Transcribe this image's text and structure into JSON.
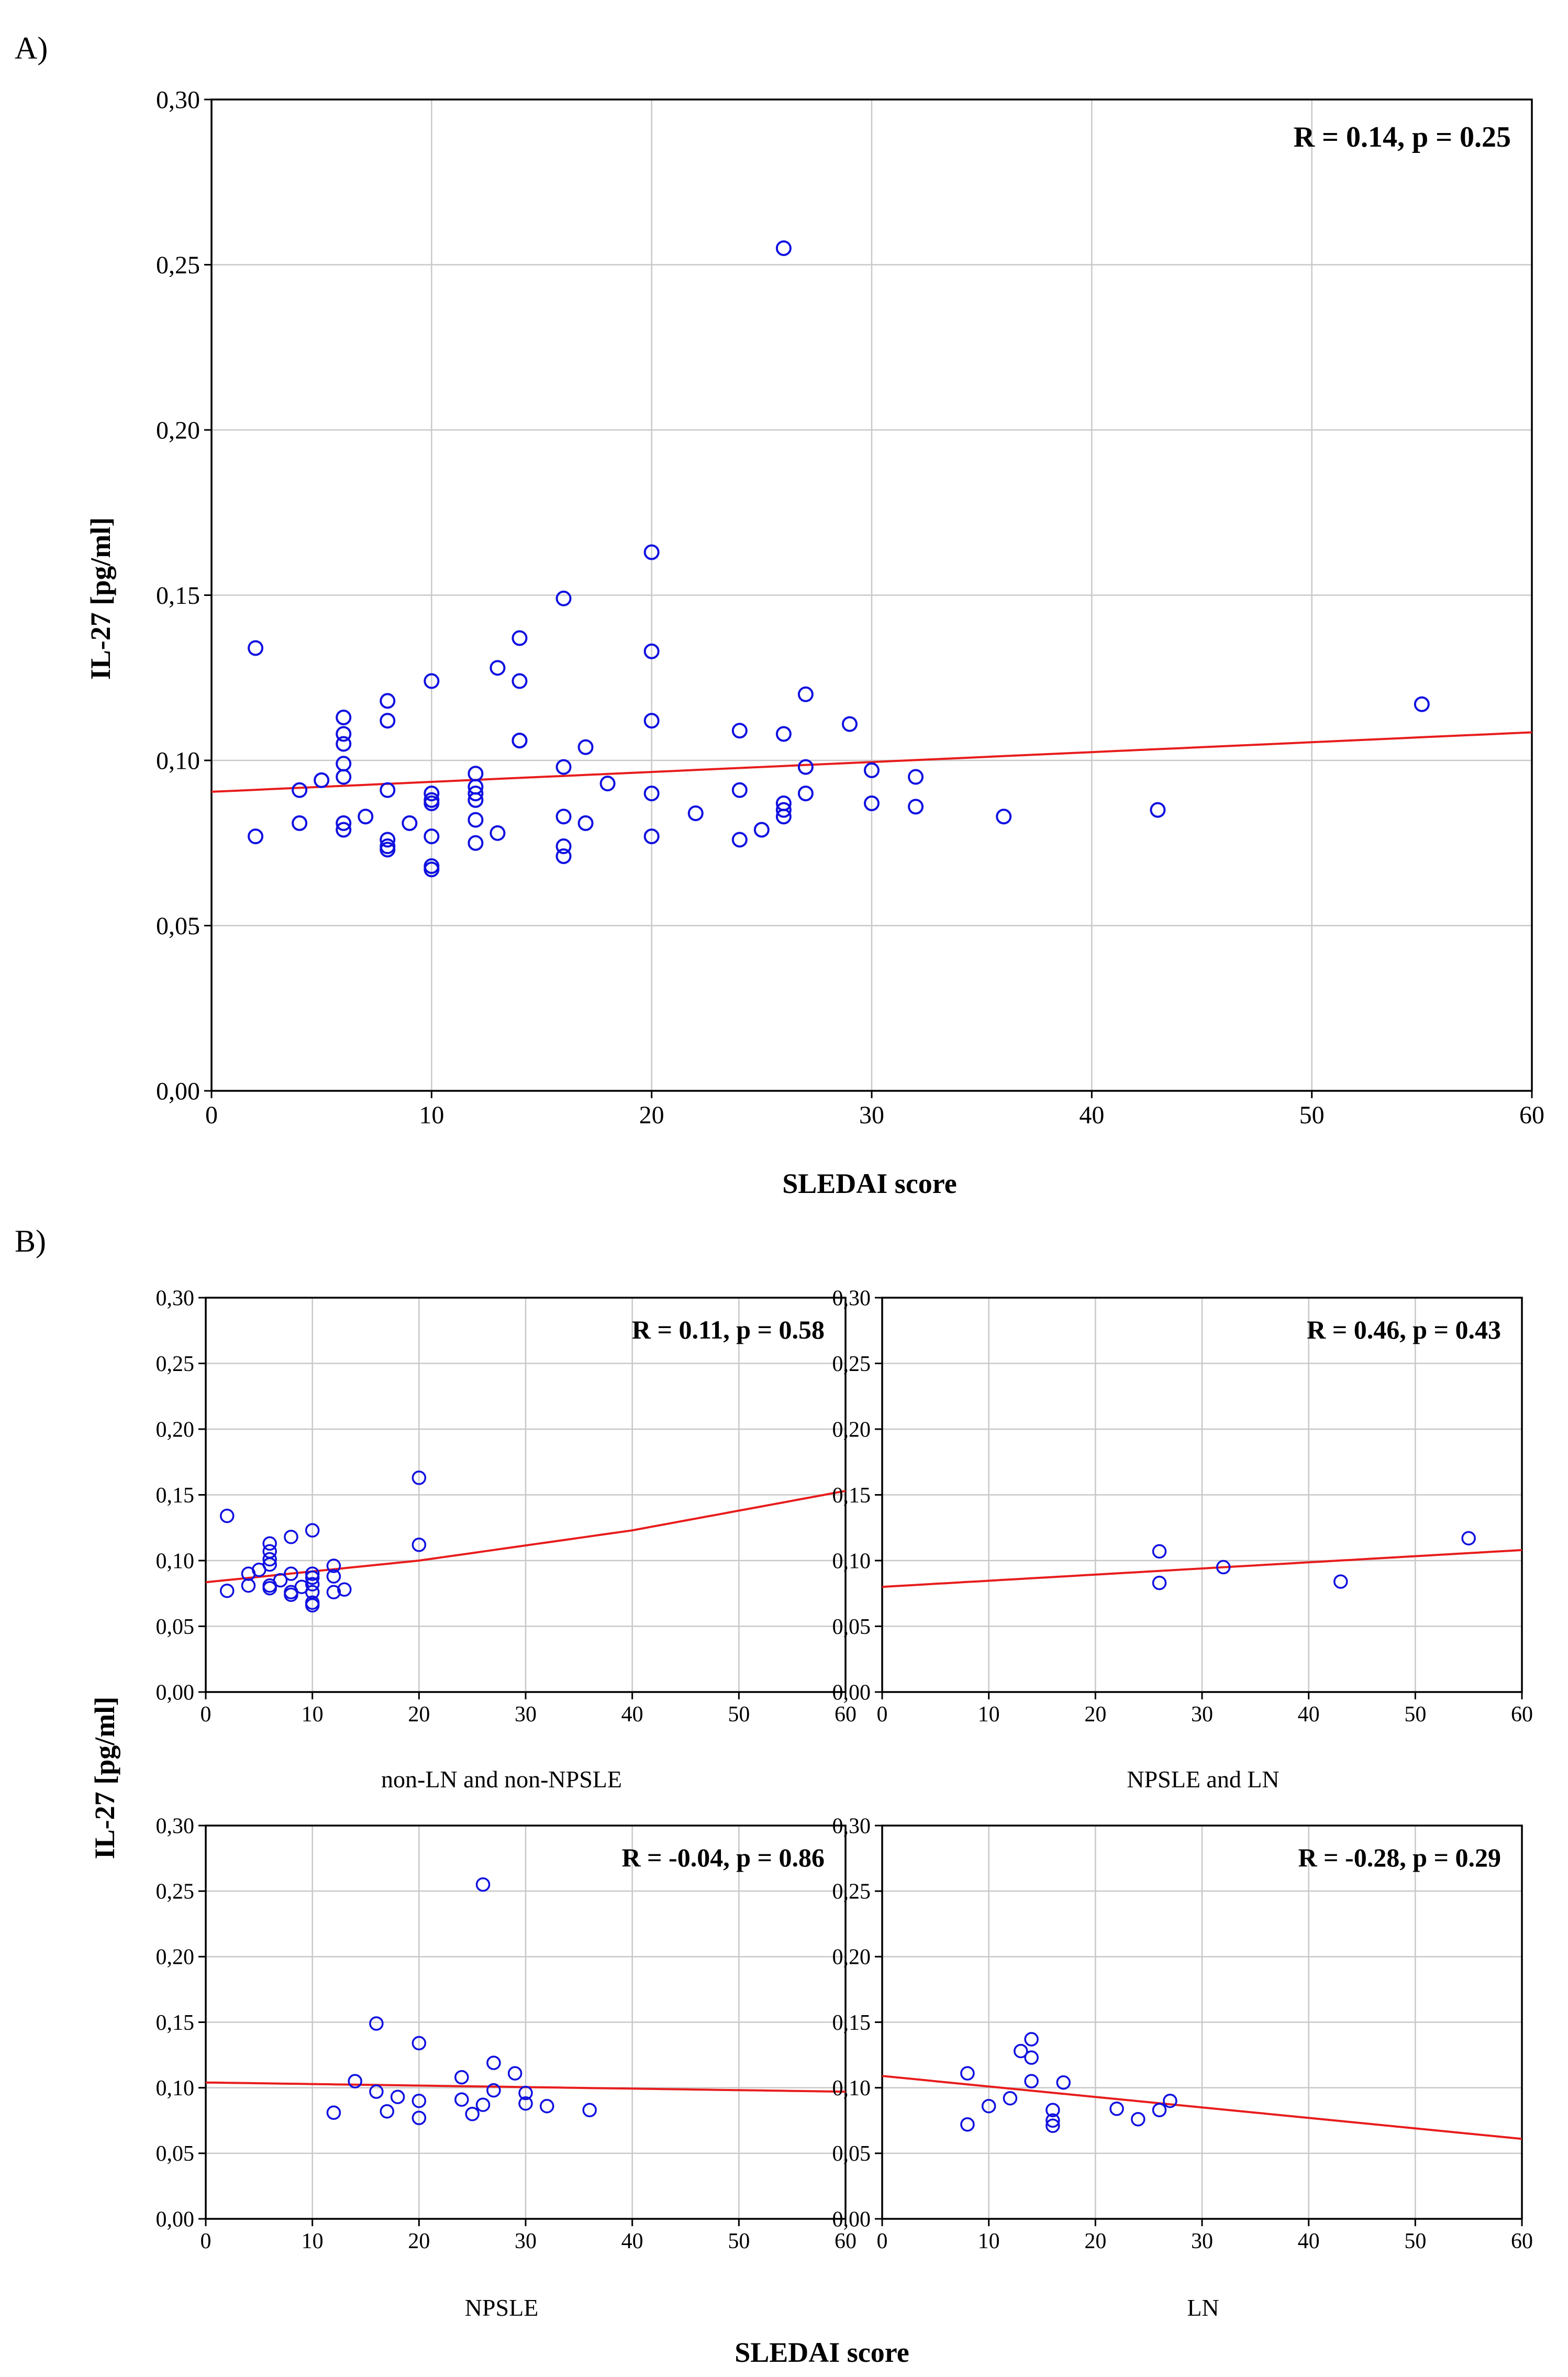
{
  "figure": {
    "panel_a_label": "A)",
    "panel_b_label": "B)",
    "shared_xlabel": "SLEDAI score",
    "shared_ylabel": "IL-27 [pg/ml]"
  },
  "colors": {
    "points": "#1010e0",
    "fit": "#e81c1c",
    "grid": "#c8c8c8",
    "frame": "#000000"
  },
  "chart_data": [
    {
      "type": "scatter",
      "panel": "A",
      "xlabel": "SLEDAI score",
      "ylabel": "IL-27 [pg/ml]",
      "annotation": "R = 0.14, p = 0.25",
      "xlim": [
        0,
        60
      ],
      "ylim": [
        0,
        0.3
      ],
      "x_ticks": [
        "0",
        "10",
        "20",
        "30",
        "40",
        "50",
        "60"
      ],
      "y_ticks": [
        "0,00",
        "0,05",
        "0,10",
        "0,15",
        "0,20",
        "0,25",
        "0,30"
      ],
      "grid": true,
      "fit_line": {
        "x": [
          0,
          60
        ],
        "y": [
          0.0905,
          0.1085
        ]
      },
      "points": [
        [
          2,
          0.134
        ],
        [
          2,
          0.077
        ],
        [
          4,
          0.091
        ],
        [
          4,
          0.081
        ],
        [
          5,
          0.094
        ],
        [
          6,
          0.113
        ],
        [
          6,
          0.108
        ],
        [
          6,
          0.105
        ],
        [
          6,
          0.099
        ],
        [
          6,
          0.095
        ],
        [
          6,
          0.081
        ],
        [
          6,
          0.079
        ],
        [
          7,
          0.083
        ],
        [
          8,
          0.118
        ],
        [
          8,
          0.112
        ],
        [
          8,
          0.091
        ],
        [
          8,
          0.076
        ],
        [
          8,
          0.074
        ],
        [
          8,
          0.073
        ],
        [
          9,
          0.081
        ],
        [
          10,
          0.124
        ],
        [
          10,
          0.09
        ],
        [
          10,
          0.088
        ],
        [
          10,
          0.087
        ],
        [
          10,
          0.077
        ],
        [
          10,
          0.068
        ],
        [
          10,
          0.067
        ],
        [
          12,
          0.096
        ],
        [
          12,
          0.092
        ],
        [
          12,
          0.09
        ],
        [
          12,
          0.088
        ],
        [
          12,
          0.082
        ],
        [
          12,
          0.075
        ],
        [
          13,
          0.128
        ],
        [
          13,
          0.078
        ],
        [
          14,
          0.137
        ],
        [
          14,
          0.124
        ],
        [
          14,
          0.106
        ],
        [
          14,
          0.106
        ],
        [
          16,
          0.149
        ],
        [
          16,
          0.098
        ],
        [
          16,
          0.083
        ],
        [
          16,
          0.074
        ],
        [
          16,
          0.071
        ],
        [
          17,
          0.104
        ],
        [
          17,
          0.081
        ],
        [
          18,
          0.093
        ],
        [
          20,
          0.163
        ],
        [
          20,
          0.133
        ],
        [
          20,
          0.112
        ],
        [
          20,
          0.09
        ],
        [
          20,
          0.077
        ],
        [
          22,
          0.084
        ],
        [
          24,
          0.109
        ],
        [
          24,
          0.091
        ],
        [
          24,
          0.076
        ],
        [
          25,
          0.079
        ],
        [
          26,
          0.255
        ],
        [
          26,
          0.108
        ],
        [
          26,
          0.087
        ],
        [
          26,
          0.085
        ],
        [
          26,
          0.083
        ],
        [
          27,
          0.12
        ],
        [
          27,
          0.098
        ],
        [
          27,
          0.09
        ],
        [
          29,
          0.111
        ],
        [
          30,
          0.097
        ],
        [
          30,
          0.087
        ],
        [
          32,
          0.095
        ],
        [
          32,
          0.086
        ],
        [
          36,
          0.083
        ],
        [
          43,
          0.085
        ],
        [
          55,
          0.117
        ]
      ]
    },
    {
      "type": "scatter",
      "panel": "B1",
      "subtitle": "non-LN and non-NPSLE",
      "annotation": "R = 0.11, p = 0.58",
      "xlim": [
        0,
        60
      ],
      "ylim": [
        0,
        0.3
      ],
      "x_ticks": [
        "0",
        "10",
        "20",
        "30",
        "40",
        "50",
        "60"
      ],
      "y_ticks": [
        "0,00",
        "0,05",
        "0,10",
        "0,15",
        "0,20",
        "0,25",
        "0,30"
      ],
      "grid": true,
      "fit_line": {
        "x": [
          0,
          20,
          40,
          60
        ],
        "y": [
          0.0835,
          0.1,
          0.123,
          0.153
        ]
      },
      "points": [
        [
          2,
          0.134
        ],
        [
          2,
          0.077
        ],
        [
          4,
          0.09
        ],
        [
          4,
          0.081
        ],
        [
          5,
          0.093
        ],
        [
          6,
          0.113
        ],
        [
          6,
          0.107
        ],
        [
          6,
          0.101
        ],
        [
          6,
          0.097
        ],
        [
          6,
          0.081
        ],
        [
          6,
          0.079
        ],
        [
          7,
          0.085
        ],
        [
          8,
          0.118
        ],
        [
          8,
          0.09
        ],
        [
          8,
          0.076
        ],
        [
          8,
          0.074
        ],
        [
          9,
          0.08
        ],
        [
          10,
          0.123
        ],
        [
          10,
          0.09
        ],
        [
          10,
          0.087
        ],
        [
          10,
          0.082
        ],
        [
          10,
          0.076
        ],
        [
          10,
          0.068
        ],
        [
          10,
          0.066
        ],
        [
          12,
          0.096
        ],
        [
          12,
          0.088
        ],
        [
          12,
          0.076
        ],
        [
          13,
          0.078
        ],
        [
          20,
          0.163
        ],
        [
          20,
          0.112
        ]
      ]
    },
    {
      "type": "scatter",
      "panel": "B2",
      "subtitle": "NPSLE and LN",
      "annotation": "R = 0.46, p = 0.43",
      "xlim": [
        0,
        60
      ],
      "ylim": [
        0,
        0.3
      ],
      "x_ticks": [
        "0",
        "10",
        "20",
        "30",
        "40",
        "50",
        "60"
      ],
      "y_ticks": [
        "0,00",
        "0,05",
        "0,10",
        "0,15",
        "0,20",
        "0,25",
        "0,30"
      ],
      "grid": true,
      "fit_line": {
        "x": [
          0,
          60
        ],
        "y": [
          0.08,
          0.108
        ]
      },
      "points": [
        [
          26,
          0.107
        ],
        [
          26,
          0.083
        ],
        [
          32,
          0.095
        ],
        [
          43,
          0.084
        ],
        [
          55,
          0.117
        ]
      ]
    },
    {
      "type": "scatter",
      "panel": "B3",
      "subtitle": "NPSLE",
      "annotation": "R = -0.04, p = 0.86",
      "xlim": [
        0,
        60
      ],
      "ylim": [
        0,
        0.3
      ],
      "x_ticks": [
        "0",
        "10",
        "20",
        "30",
        "40",
        "50",
        "60"
      ],
      "y_ticks": [
        "0,00",
        "0,05",
        "0,10",
        "0,15",
        "0,20",
        "0,25",
        "0,30"
      ],
      "grid": true,
      "fit_line": {
        "x": [
          0,
          60
        ],
        "y": [
          0.104,
          0.097
        ]
      },
      "points": [
        [
          12,
          0.081
        ],
        [
          14,
          0.105
        ],
        [
          16,
          0.149
        ],
        [
          16,
          0.097
        ],
        [
          17,
          0.082
        ],
        [
          18,
          0.093
        ],
        [
          20,
          0.134
        ],
        [
          20,
          0.09
        ],
        [
          20,
          0.077
        ],
        [
          24,
          0.108
        ],
        [
          24,
          0.091
        ],
        [
          25,
          0.08
        ],
        [
          26,
          0.255
        ],
        [
          26,
          0.087
        ],
        [
          27,
          0.119
        ],
        [
          27,
          0.098
        ],
        [
          29,
          0.111
        ],
        [
          30,
          0.096
        ],
        [
          30,
          0.088
        ],
        [
          32,
          0.086
        ],
        [
          36,
          0.083
        ]
      ]
    },
    {
      "type": "scatter",
      "panel": "B4",
      "subtitle": "LN",
      "annotation": "R = -0.28, p = 0.29",
      "xlim": [
        0,
        60
      ],
      "ylim": [
        0,
        0.3
      ],
      "x_ticks": [
        "0",
        "10",
        "20",
        "30",
        "40",
        "50",
        "60"
      ],
      "y_ticks": [
        "0,00",
        "0,05",
        "0,10",
        "0,15",
        "0,20",
        "0,25",
        "0,30"
      ],
      "grid": true,
      "fit_line": {
        "x": [
          0,
          60
        ],
        "y": [
          0.109,
          0.061
        ]
      },
      "points": [
        [
          8,
          0.111
        ],
        [
          8,
          0.072
        ],
        [
          10,
          0.086
        ],
        [
          12,
          0.092
        ],
        [
          13,
          0.128
        ],
        [
          14,
          0.137
        ],
        [
          14,
          0.123
        ],
        [
          14,
          0.105
        ],
        [
          16,
          0.083
        ],
        [
          16,
          0.075
        ],
        [
          16,
          0.071
        ],
        [
          17,
          0.104
        ],
        [
          22,
          0.084
        ],
        [
          24,
          0.076
        ],
        [
          26,
          0.083
        ],
        [
          27,
          0.09
        ]
      ]
    }
  ]
}
